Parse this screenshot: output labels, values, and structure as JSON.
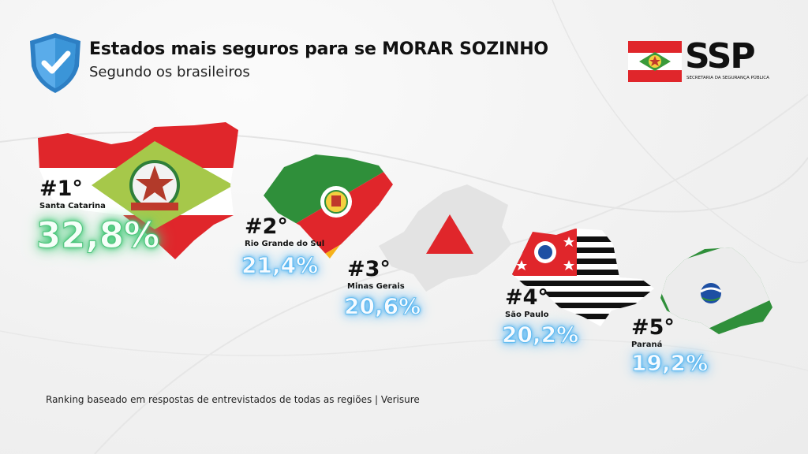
{
  "header": {
    "title": "Estados mais seguros para se MORAR SOZINHO",
    "subtitle": "Segundo os brasileiros"
  },
  "logo": {
    "text": "SSP",
    "subtext": "SECRETARIA DA SEGURANÇA PÚBLICA"
  },
  "ranking": [
    {
      "rank": "#1°",
      "state": "Santa Catarina",
      "percent": "32,8%"
    },
    {
      "rank": "#2°",
      "state": "Rio Grande do Sul",
      "percent": "21,4%"
    },
    {
      "rank": "#3°",
      "state": "Minas Gerais",
      "percent": "20,6%"
    },
    {
      "rank": "#4°",
      "state": "São Paulo",
      "percent": "20,2%"
    },
    {
      "rank": "#5°",
      "state": "Paraná",
      "percent": "19,2%"
    }
  ],
  "footnote": "Ranking baseado em respostas de entrevistados de todas as regiões | Verisure",
  "colors": {
    "red": "#e0262b",
    "green": "#2f8f3a",
    "yellow": "#f6b21a",
    "glow_green": "#37c46e",
    "glow_blue": "#3aa6ef",
    "shield_blue": "#3b95d8"
  }
}
